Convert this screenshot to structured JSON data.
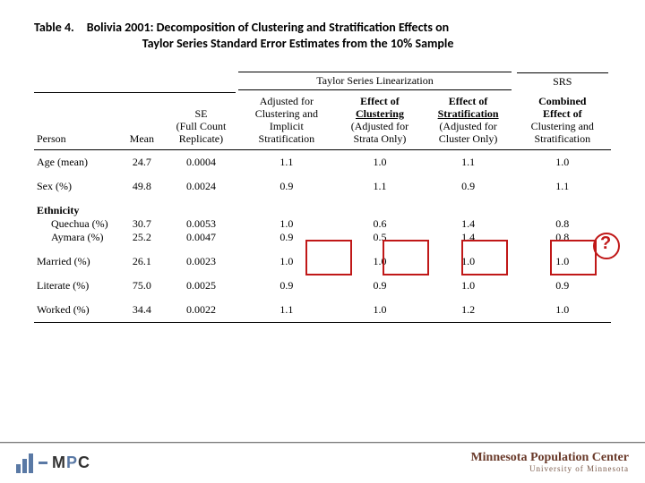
{
  "title": {
    "label": "Table 4.",
    "line1": "Bolivia 2001: Decomposition of Clustering and Stratification Effects on",
    "line2": "Taylor Series Standard Error Estimates from the 10% Sample"
  },
  "span_headers": {
    "tsl": "Taylor Series Linearization",
    "srs": "SRS"
  },
  "columns": {
    "person": "Person",
    "mean": "Mean",
    "se_l1": "SE",
    "se_l2": "(Full Count",
    "se_l3": "Replicate)",
    "adj_l1": "Adjusted for",
    "adj_l2": "Clustering and",
    "adj_l3": "Implicit",
    "adj_l4": "Stratification",
    "ec_l1": "Effect of",
    "ec_l2": "Clustering",
    "ec_l3": "(Adjusted for",
    "ec_l4": "Strata Only)",
    "es_l1": "Effect of",
    "es_l2": "Stratification",
    "es_l3": "(Adjusted for",
    "es_l4": "Cluster Only)",
    "comb_l1": "Combined",
    "comb_l2": "Effect of",
    "comb_l3": "Clustering and",
    "comb_l4": "Stratification"
  },
  "rows": {
    "age": {
      "label": "Age (mean)",
      "mean": "24.7",
      "se": "0.0004",
      "adj": "1.1",
      "ec": "1.0",
      "es": "1.1",
      "comb": "1.0"
    },
    "sex": {
      "label": "Sex (%)",
      "mean": "49.8",
      "se": "0.0024",
      "adj": "0.9",
      "ec": "1.1",
      "es": "0.9",
      "comb": "1.1"
    },
    "eth_hdr": {
      "label": "Ethnicity"
    },
    "quechua": {
      "label": "Quechua (%)",
      "mean": "30.7",
      "se": "0.0053",
      "adj": "1.0",
      "ec": "0.6",
      "es": "1.4",
      "comb": "0.8"
    },
    "aymara": {
      "label": "Aymara (%)",
      "mean": "25.2",
      "se": "0.0047",
      "adj": "0.9",
      "ec": "0.5",
      "es": "1.4",
      "comb": "0.8"
    },
    "married": {
      "label": "Married (%)",
      "mean": "26.1",
      "se": "0.0023",
      "adj": "1.0",
      "ec": "1.0",
      "es": "1.0",
      "comb": "1.0"
    },
    "literate": {
      "label": "Literate (%)",
      "mean": "75.0",
      "se": "0.0025",
      "adj": "0.9",
      "ec": "0.9",
      "es": "1.0",
      "comb": "0.9"
    },
    "worked": {
      "label": "Worked (%)",
      "mean": "34.4",
      "se": "0.0022",
      "adj": "1.1",
      "ec": "1.0",
      "es": "1.2",
      "comb": "1.0"
    }
  },
  "footer": {
    "left_text": "MPC",
    "right_l1": "Minnesota Population Center",
    "right_l2": "University of Minnesota"
  },
  "colors": {
    "highlight": "#c01818",
    "logo_blue": "#5a79a5",
    "footer_text": "#6a3a2a"
  }
}
